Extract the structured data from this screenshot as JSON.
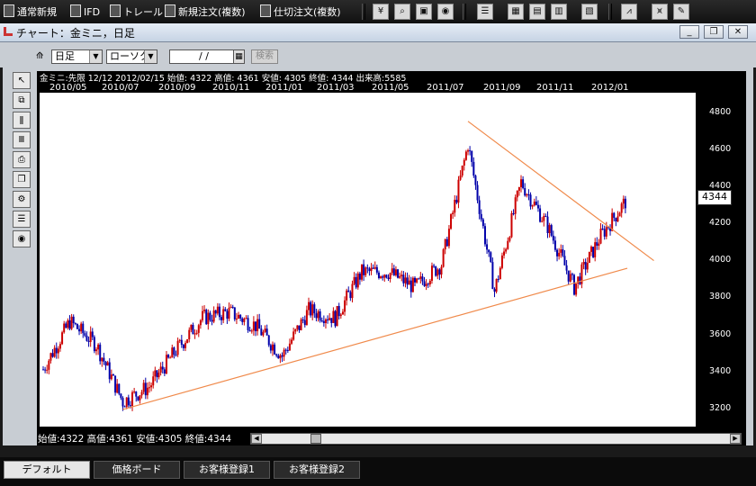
{
  "menubar": {
    "items": [
      "通常新規",
      "IFD",
      "トレール",
      "新規注文(複数)",
      "仕切注文(複数)"
    ],
    "icon_buttons": [
      "yen-icon",
      "search-doc-icon",
      "window-icon",
      "circle-icon",
      "layout1-icon",
      "layout2-icon",
      "layout3-icon",
      "layout4-icon",
      "layout5-icon",
      "chart-icon",
      "chart2-icon",
      "pen-icon"
    ]
  },
  "window": {
    "title": "チャート：金ミニ，日足",
    "min": "_",
    "restore": "❐",
    "close": "✕"
  },
  "controls": {
    "period": "日足",
    "chart_type": "ローソク",
    "date_value": "/  /",
    "search_label": "検索"
  },
  "chart": {
    "info_line": "金ミニ:先限  12/12  2012/02/15  始値: 4322  高値: 4361  安値: 4305  終値: 4344  出来高:5585",
    "x_labels": [
      "2010/05",
      "2010/07",
      "2010/09",
      "2010/11",
      "2011/01",
      "2011/03",
      "2011/05",
      "2011/07",
      "2011/09",
      "2011/11",
      "2012/01"
    ],
    "y_labels": [
      "4800",
      "4600",
      "4400",
      "4200",
      "4000",
      "3800",
      "3600",
      "3400",
      "3200"
    ],
    "current_price": "4344",
    "bottom_info": "始値:4322  高値:4361  安値:4305  終値:4344"
  },
  "chart_data": {
    "type": "line",
    "x": [
      "2010/04",
      "2010/05",
      "2010/06",
      "2010/07",
      "2010/08",
      "2010/09",
      "2010/10",
      "2010/11",
      "2010/12",
      "2011/01",
      "2011/02",
      "2011/03",
      "2011/04",
      "2011/05",
      "2011/06",
      "2011/07",
      "2011/08",
      "2011/09",
      "2011/10",
      "2011/11",
      "2011/12",
      "2012/01",
      "2012/02"
    ],
    "values": [
      3450,
      3700,
      3580,
      3280,
      3360,
      3550,
      3720,
      3750,
      3680,
      3520,
      3760,
      3720,
      3960,
      3960,
      3880,
      4000,
      4630,
      3860,
      4430,
      4200,
      3880,
      4150,
      4344
    ],
    "ylim": [
      3150,
      4900
    ],
    "trendlines": [
      {
        "from": [
          "2010/07",
          3240
        ],
        "to": [
          "2012/02",
          3980
        ]
      },
      {
        "from": [
          "2011/08",
          4750
        ],
        "to": [
          "2012/03",
          4020
        ]
      }
    ],
    "colors": {
      "candle_up": "#cc0000",
      "candle_down": "#0000aa",
      "trendline": "#f08a4b"
    }
  },
  "tabs": [
    "デフォルト",
    "価格ボード",
    "お客様登録1",
    "お客様登録2"
  ],
  "left_tools": [
    "cursor-tool-icon",
    "zoom-tool-icon",
    "candle-tool-icon",
    "bars-tool-icon",
    "print-tool-icon",
    "copy-tool-icon",
    "settings-tool-icon",
    "list-tool-icon",
    "circle-tool-icon"
  ]
}
